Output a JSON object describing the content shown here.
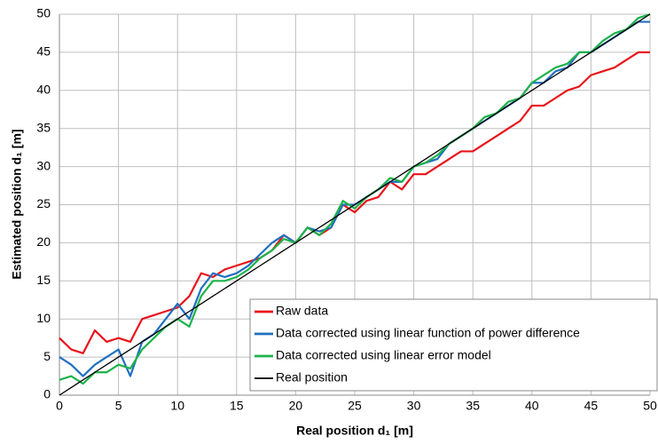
{
  "chart_data": {
    "type": "line",
    "xlabel": "Real position d₁ [m]",
    "ylabel": "Estimated position d₁ [m]",
    "x": [
      0,
      1,
      2,
      3,
      4,
      5,
      6,
      7,
      8,
      9,
      10,
      11,
      12,
      13,
      14,
      15,
      16,
      17,
      18,
      19,
      20,
      21,
      22,
      23,
      24,
      25,
      26,
      27,
      28,
      29,
      30,
      31,
      32,
      33,
      34,
      35,
      36,
      37,
      38,
      39,
      40,
      41,
      42,
      43,
      44,
      45,
      46,
      47,
      48,
      49,
      50
    ],
    "series": [
      {
        "name": "Raw data",
        "color": "#e8141b",
        "width": 2.2,
        "values": [
          7.5,
          6,
          5.5,
          8.5,
          7,
          7.5,
          7,
          10,
          10.5,
          11,
          11.5,
          13,
          16,
          15.5,
          16.5,
          17,
          17.5,
          18,
          19,
          21,
          20,
          22,
          21,
          22,
          25,
          24,
          25.5,
          26,
          28,
          27,
          29,
          29,
          30,
          31,
          32,
          32,
          33,
          34,
          35,
          36,
          38,
          38,
          39,
          40,
          40.5,
          42,
          42.5,
          43,
          44,
          45,
          45
        ]
      },
      {
        "name": "Data corrected using linear function of power difference",
        "color": "#1f6fc0",
        "width": 2.2,
        "values": [
          5,
          4,
          2.5,
          4,
          5,
          6,
          2.5,
          7,
          8,
          10,
          12,
          10,
          14,
          16,
          15.5,
          16,
          17,
          18.5,
          20,
          21,
          20,
          22,
          21.5,
          22,
          25,
          25,
          26,
          27,
          28,
          28,
          30,
          30.5,
          31,
          33,
          34,
          35,
          36,
          37,
          38,
          39,
          41,
          41,
          42.5,
          43,
          45,
          45,
          46,
          47,
          48,
          49,
          49
        ]
      },
      {
        "name": "Data corrected using linear error model",
        "color": "#1db34a",
        "width": 2.2,
        "values": [
          2,
          2.5,
          1.5,
          3,
          3,
          4,
          3.5,
          6,
          7.5,
          9,
          10,
          9,
          13,
          15,
          15,
          15.5,
          16.5,
          18,
          19,
          20.5,
          20,
          22,
          21,
          22.5,
          25.5,
          24.5,
          26,
          27,
          28.5,
          28,
          30,
          30.5,
          31.5,
          33,
          34,
          35,
          36.5,
          37,
          38.5,
          39,
          41,
          42,
          43,
          43.5,
          45,
          45,
          46.5,
          47.5,
          48,
          49.5,
          50
        ]
      },
      {
        "name": "Real position",
        "color": "#000000",
        "width": 1.3,
        "values": [
          0,
          1,
          2,
          3,
          4,
          5,
          6,
          7,
          8,
          9,
          10,
          11,
          12,
          13,
          14,
          15,
          16,
          17,
          18,
          19,
          20,
          21,
          22,
          23,
          24,
          25,
          26,
          27,
          28,
          29,
          30,
          31,
          32,
          33,
          34,
          35,
          36,
          37,
          38,
          39,
          40,
          41,
          42,
          43,
          44,
          45,
          46,
          47,
          48,
          49,
          50
        ]
      }
    ],
    "xlim": [
      0,
      50
    ],
    "xticks": [
      0,
      5,
      10,
      15,
      20,
      25,
      30,
      35,
      40,
      45,
      50
    ],
    "ylim": [
      0,
      50
    ],
    "yticks": [
      0,
      5,
      10,
      15,
      20,
      25,
      30,
      35,
      40,
      45,
      50
    ],
    "grid": true,
    "legend": "lower right"
  }
}
